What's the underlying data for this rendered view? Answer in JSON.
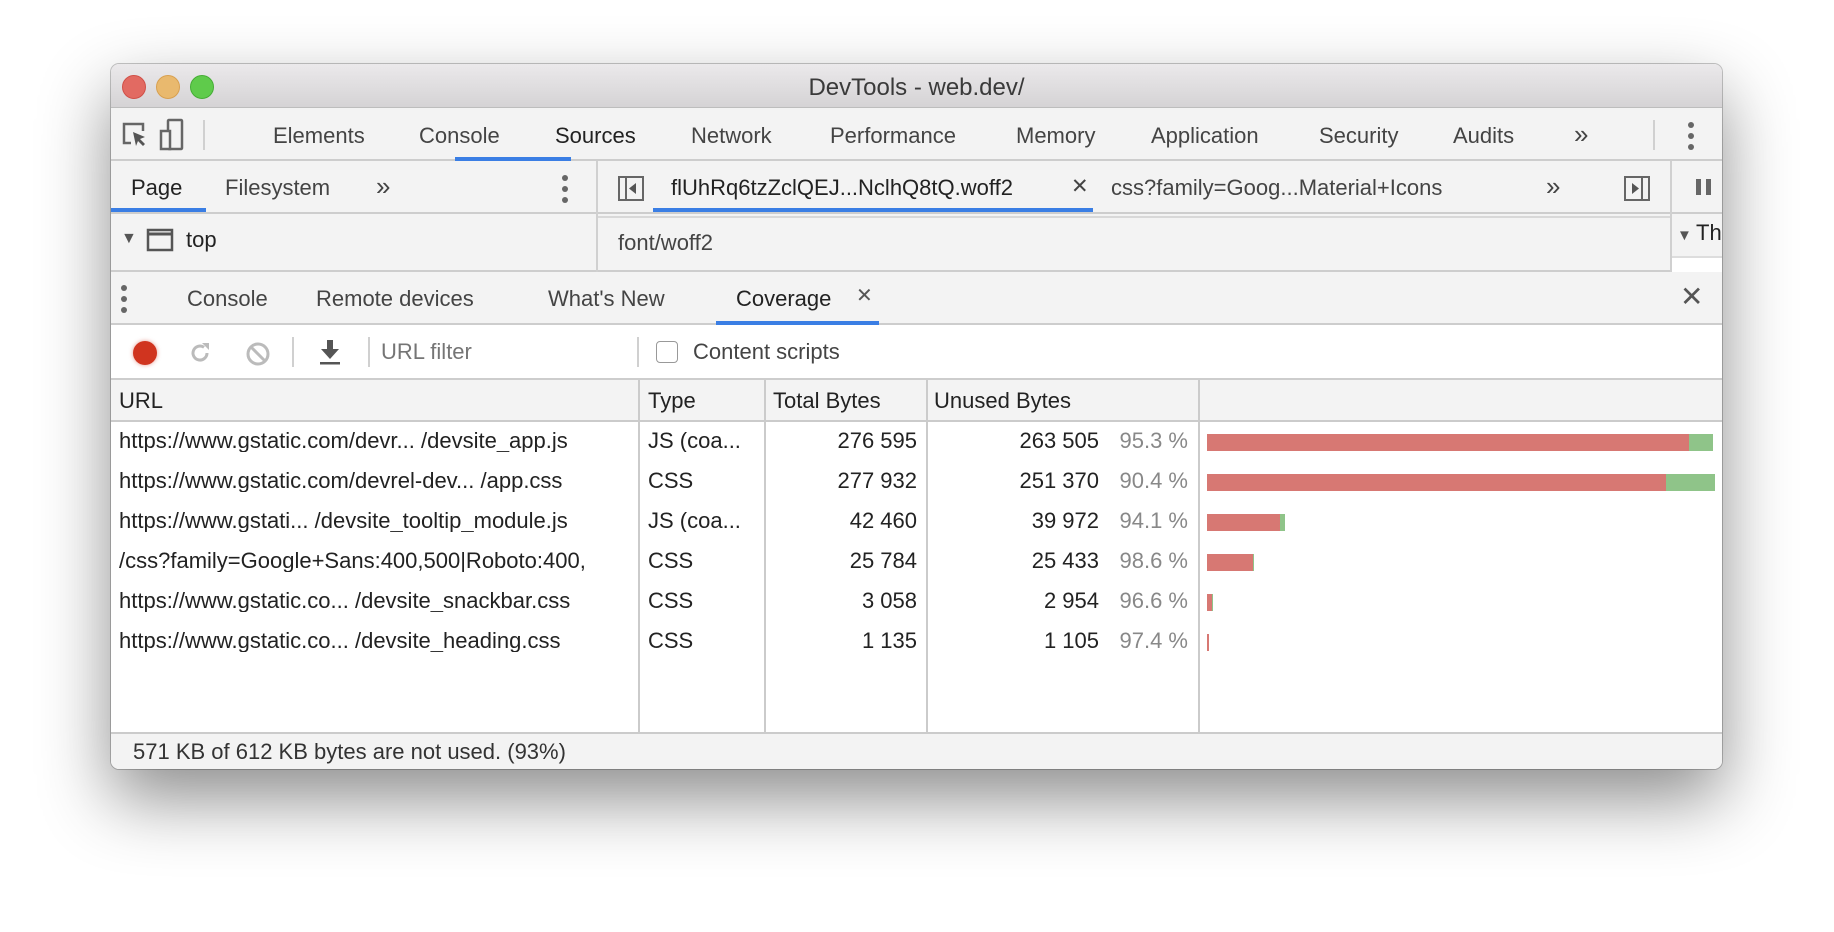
{
  "window": {
    "title": "DevTools - web.dev/"
  },
  "main_tabs": [
    {
      "label": "Elements"
    },
    {
      "label": "Console"
    },
    {
      "label": "Sources",
      "active": true
    },
    {
      "label": "Network"
    },
    {
      "label": "Performance"
    },
    {
      "label": "Memory"
    },
    {
      "label": "Application"
    },
    {
      "label": "Security"
    },
    {
      "label": "Audits"
    }
  ],
  "more_symbol": "»",
  "navigator_tabs": [
    {
      "label": "Page",
      "active": true
    },
    {
      "label": "Filesystem"
    }
  ],
  "editor_tabs": [
    {
      "label": "flUhRq6tzZclQEJ...NclhQ8tQ.woff2",
      "active": true,
      "closable": true
    },
    {
      "label": "css?family=Goog...Material+Icons"
    }
  ],
  "tree": {
    "root": "top"
  },
  "editor_content": "font/woff2",
  "right_panel_partial": "Th",
  "drawer_tabs": [
    {
      "label": "Console"
    },
    {
      "label": "Remote devices"
    },
    {
      "label": "What's New"
    },
    {
      "label": "Coverage",
      "active": true,
      "closable": true
    }
  ],
  "toolbar": {
    "url_filter_placeholder": "URL filter",
    "content_scripts_label": "Content scripts",
    "content_scripts_checked": false
  },
  "table": {
    "columns": [
      "URL",
      "Type",
      "Total Bytes",
      "Unused Bytes"
    ],
    "rows": [
      {
        "url": "https://www.gstatic.com/devr... /devsite_app.js",
        "type": "JS (coa...",
        "total": "276 595",
        "unused": "263 505",
        "pct": "95.3 %",
        "total_n": 276595,
        "unused_n": 263505
      },
      {
        "url": "https://www.gstatic.com/devrel-dev... /app.css",
        "type": "CSS",
        "total": "277 932",
        "unused": "251 370",
        "pct": "90.4 %",
        "total_n": 277932,
        "unused_n": 251370
      },
      {
        "url": "https://www.gstati... /devsite_tooltip_module.js",
        "type": "JS (coa...",
        "total": "42 460",
        "unused": "39 972",
        "pct": "94.1 %",
        "total_n": 42460,
        "unused_n": 39972
      },
      {
        "url": "/css?family=Google+Sans:400,500|Roboto:400,",
        "type": "CSS",
        "total": "25 784",
        "unused": "25 433",
        "pct": "98.6 %",
        "total_n": 25784,
        "unused_n": 25433
      },
      {
        "url": "https://www.gstatic.co... /devsite_snackbar.css",
        "type": "CSS",
        "total": "3 058",
        "unused": "2 954",
        "pct": "96.6 %",
        "total_n": 3058,
        "unused_n": 2954
      },
      {
        "url": "https://www.gstatic.co...  /devsite_heading.css",
        "type": "CSS",
        "total": "1 135",
        "unused": "1 105",
        "pct": "97.4 %",
        "total_n": 1135,
        "unused_n": 1105
      }
    ]
  },
  "status": "571 KB of 612 KB bytes are not used. (93%)",
  "colors": {
    "accent": "#3a7ee4",
    "unused": "#d77873",
    "used": "#8fc489",
    "record": "#d0341f"
  }
}
